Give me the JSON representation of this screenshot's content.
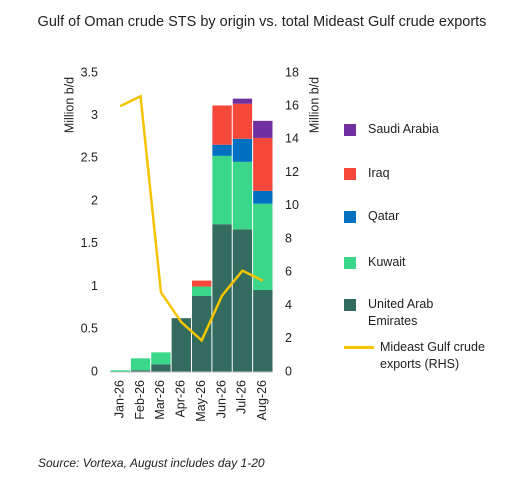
{
  "chart_data": {
    "type": "bar",
    "title": "Gulf of Oman crude STS by origin vs. total Mideast Gulf crude exports",
    "source": "Source: Vortexa, August includes day 1-20",
    "y_label": "Million b/d",
    "y2_label": "Million b/d",
    "categories": [
      "Jan-26",
      "Feb-26",
      "Mar-26",
      "Apr-26",
      "May-26",
      "Jun-26",
      "Jul-26",
      "Aug-26"
    ],
    "ylim": [
      0,
      3.5
    ],
    "yticks": [
      0,
      0.5,
      1,
      1.5,
      2,
      2.5,
      3,
      3.5
    ],
    "y2lim": [
      0,
      18
    ],
    "y2ticks": [
      0,
      2,
      4,
      6,
      8,
      10,
      12,
      14,
      16,
      18
    ],
    "stacked": true,
    "series": [
      {
        "name": "United Arab Emirates",
        "color": "#336b5e",
        "values": [
          0,
          0.02,
          0.09,
          0.63,
          0.89,
          1.73,
          1.67,
          0.96
        ]
      },
      {
        "name": "Kuwait",
        "color": "#3ad68a",
        "values": [
          0.02,
          0.14,
          0.14,
          0,
          0.11,
          0.8,
          0.79,
          1.01
        ]
      },
      {
        "name": "Qatar",
        "color": "#0070c0",
        "values": [
          0,
          0,
          0,
          0,
          0,
          0.13,
          0.27,
          0.15
        ]
      },
      {
        "name": "Iraq",
        "color": "#f4483b",
        "values": [
          0,
          0,
          0,
          0,
          0.07,
          0.46,
          0.41,
          0.62
        ]
      },
      {
        "name": "Saudi Arabia",
        "color": "#7030a0",
        "values": [
          0,
          0,
          0,
          0,
          0,
          0,
          0.06,
          0.2
        ]
      },
      {
        "name": "Mideast Gulf crude exports (RHS)",
        "color": "#f5c400",
        "type": "line",
        "axis": "y2",
        "values": [
          16,
          16.6,
          4.8,
          3.0,
          1.9,
          4.6,
          6.1,
          5.5
        ]
      }
    ]
  }
}
